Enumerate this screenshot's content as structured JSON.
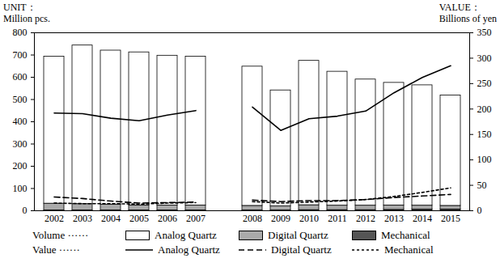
{
  "chart_data": {
    "type": "bar",
    "ylabel": "UNIT：\nMillion pcs.",
    "y2label": "VALUE：\nBillions of yen",
    "volume_label": "Volume ······",
    "value_label": "Value ······",
    "categories": [
      "2002",
      "2003",
      "2004",
      "2005",
      "2006",
      "2007",
      null,
      "2008",
      "2009",
      "2010",
      "2011",
      "2012",
      "2013",
      "2014",
      "2015"
    ],
    "stacked": true,
    "ylim": [
      0,
      800
    ],
    "yticks": [
      0,
      100,
      200,
      300,
      400,
      500,
      600,
      700,
      800
    ],
    "y2lim": [
      0,
      350
    ],
    "y2ticks": [
      0,
      50,
      100,
      150,
      200,
      250,
      300,
      350
    ],
    "series": [
      {
        "name": "Mechanical",
        "type": "bar",
        "color": "#555555",
        "values": [
          2,
          2,
          2,
          2,
          2,
          2,
          null,
          2,
          2,
          3,
          3,
          3,
          4,
          5,
          6
        ]
      },
      {
        "name": "Digital Quartz",
        "type": "bar",
        "color": "#aaaaaa",
        "values": [
          30,
          28,
          25,
          22,
          22,
          22,
          null,
          20,
          18,
          22,
          20,
          20,
          20,
          18,
          16
        ]
      },
      {
        "name": "Analog Quartz",
        "type": "bar",
        "color": "#ffffff",
        "values": [
          661,
          713,
          693,
          688,
          673,
          669,
          null,
          626,
          521,
          649,
          602,
          567,
          551,
          541,
          496
        ]
      },
      {
        "name": "Analog Quartz",
        "type": "line",
        "axis": "y2",
        "color": "#000000",
        "line_style": "solid",
        "values": [
          192,
          191,
          182,
          177,
          188,
          197,
          null,
          204,
          158,
          181,
          186,
          196,
          232,
          262,
          285
        ]
      },
      {
        "name": "Digital Quartz",
        "type": "line",
        "axis": "y2",
        "color": "#000000",
        "line_style": "dashed",
        "values": [
          27,
          24,
          19,
          15,
          16,
          17,
          null,
          21,
          18,
          20,
          20,
          22,
          26,
          29,
          32
        ]
      },
      {
        "name": "Mechanical",
        "type": "line",
        "axis": "y2",
        "color": "#000000",
        "line_style": "dotted",
        "values": [
          15,
          14,
          14,
          13,
          15,
          16,
          null,
          18,
          15,
          17,
          19,
          22,
          28,
          36,
          45
        ]
      }
    ]
  }
}
